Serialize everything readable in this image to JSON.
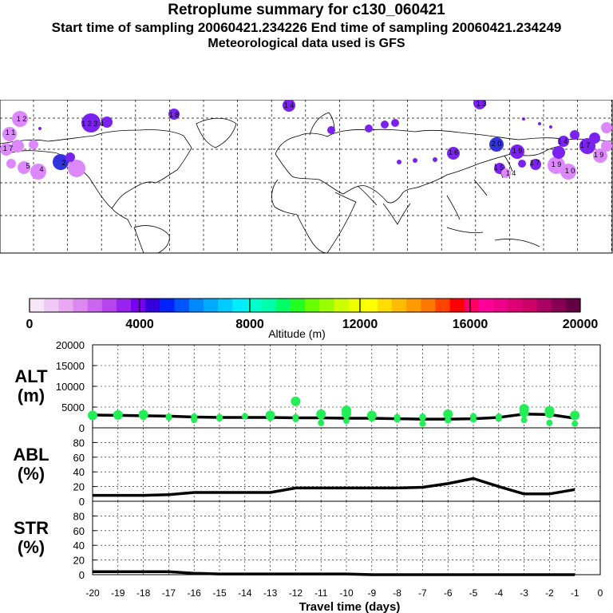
{
  "header": {
    "title": "Retroplume summary for c130_060421",
    "times": "Start time of sampling 20060421.234226     End time of sampling 20060421.234249",
    "met": "Meteorological data used is GFS"
  },
  "colors": {
    "alt_points": "#22ee55",
    "line": "#000000",
    "map_plume_light": "#dd88ff",
    "map_plume_dark": "#7a22ee",
    "map_plume_blue": "#3333dd"
  },
  "colorbar": {
    "label": "Altitude (m)",
    "tick_values": [
      0,
      4000,
      8000,
      12000,
      16000,
      20000
    ],
    "tick_labels": [
      "0",
      "4000",
      "8000",
      "12000",
      "16000",
      "20000"
    ],
    "colors": [
      "#f7e6f7",
      "#f0c8f5",
      "#e8a8f2",
      "#dc88f0",
      "#cc66ee",
      "#b844ee",
      "#9922ee",
      "#7700ee",
      "#3300dd",
      "#0022ff",
      "#0055ff",
      "#0088ff",
      "#00aaff",
      "#00ccff",
      "#00eeff",
      "#00ffcc",
      "#00ffaa",
      "#00ff66",
      "#22ff22",
      "#66ff00",
      "#99ff00",
      "#ccff00",
      "#eeff00",
      "#ffff00",
      "#ffdd00",
      "#ffbb00",
      "#ff9900",
      "#ff7700",
      "#ff4400",
      "#ff0000",
      "#ff0066",
      "#ff0099",
      "#ee0088",
      "#dd0077",
      "#cc0066",
      "#aa0066",
      "#880055",
      "#660044"
    ]
  },
  "map_labels": [
    "1 2",
    "1 3",
    "1 4",
    "1 1",
    "1 5",
    "1 6",
    "1 7",
    "1 8",
    "1 9",
    "2 0",
    "5",
    "4",
    "2",
    "1 0",
    "1 2 3 4"
  ],
  "chart_data": [
    {
      "type": "scatter",
      "panel": "ALT",
      "ylabel": "ALT\n(m)",
      "ylabel_lines": [
        "ALT",
        "(m)"
      ],
      "ylim": [
        0,
        20000
      ],
      "yticks": [
        0,
        5000,
        10000,
        15000,
        20000
      ],
      "ytick_labels": [
        "0",
        "5000",
        "10000",
        "15000",
        "20000"
      ],
      "xlim": [
        -20,
        0
      ],
      "series": [
        {
          "name": "median altitude",
          "type": "line",
          "x": [
            -20,
            -19,
            -18,
            -17,
            -16,
            -15,
            -14,
            -13,
            -12,
            -11,
            -10,
            -9,
            -8,
            -7,
            -6,
            -5,
            -4,
            -3,
            -2,
            -1
          ],
          "values": [
            3100,
            3000,
            2900,
            2800,
            2600,
            2500,
            2500,
            2500,
            2400,
            2400,
            2300,
            2300,
            2200,
            2100,
            2100,
            2200,
            2500,
            3300,
            3200,
            2300
          ]
        },
        {
          "name": "plume altitudes",
          "type": "scatter",
          "points": [
            [
              -20,
              3000
            ],
            [
              -20,
              2600
            ],
            [
              -19,
              3100
            ],
            [
              -19,
              2700
            ],
            [
              -18,
              3200
            ],
            [
              -18,
              2600
            ],
            [
              -17,
              2700
            ],
            [
              -17,
              2500
            ],
            [
              -16,
              2700
            ],
            [
              -16,
              1900
            ],
            [
              -15,
              2600
            ],
            [
              -15,
              2300
            ],
            [
              -14,
              2800
            ],
            [
              -13,
              3000
            ],
            [
              -13,
              2400
            ],
            [
              -12,
              6400
            ],
            [
              -12,
              2600
            ],
            [
              -12,
              2100
            ],
            [
              -11,
              3300
            ],
            [
              -11,
              2700
            ],
            [
              -11,
              1200
            ],
            [
              -10,
              4200
            ],
            [
              -10,
              3400
            ],
            [
              -10,
              1700
            ],
            [
              -9,
              3000
            ],
            [
              -9,
              2200
            ],
            [
              -8,
              2600
            ],
            [
              -8,
              2000
            ],
            [
              -7,
              2700
            ],
            [
              -7,
              2400
            ],
            [
              -7,
              1000
            ],
            [
              -6,
              3300
            ],
            [
              -6,
              2700
            ],
            [
              -6,
              1800
            ],
            [
              -5,
              2800
            ],
            [
              -5,
              2000
            ],
            [
              -4,
              2700
            ],
            [
              -4,
              2200
            ],
            [
              -3,
              4600
            ],
            [
              -3,
              3700
            ],
            [
              -3,
              1900
            ],
            [
              -2,
              4100
            ],
            [
              -2,
              3500
            ],
            [
              -2,
              1200
            ],
            [
              -1,
              3000
            ],
            [
              -1,
              2600
            ],
            [
              -1,
              1000
            ]
          ]
        }
      ]
    },
    {
      "type": "line",
      "panel": "ABL",
      "ylabel": "ABL\n(%)",
      "ylabel_lines": [
        "ABL",
        "(%)"
      ],
      "ylim": [
        0,
        100
      ],
      "yticks": [
        0,
        20,
        40,
        60,
        80
      ],
      "ytick_labels": [
        "0",
        "20",
        "40",
        "60",
        "80"
      ],
      "xlim": [
        -20,
        0
      ],
      "series": [
        {
          "name": "ABL fraction",
          "x": [
            -20,
            -19,
            -18,
            -17,
            -16,
            -15,
            -14,
            -13,
            -12,
            -11,
            -10,
            -9,
            -8,
            -7,
            -6,
            -5,
            -4,
            -3,
            -2,
            -1
          ],
          "values": [
            8,
            8,
            8,
            9,
            12,
            12,
            12,
            12,
            18,
            18,
            18,
            18,
            18,
            19,
            24,
            31,
            20,
            10,
            10,
            16
          ]
        }
      ]
    },
    {
      "type": "line",
      "panel": "STR",
      "ylabel": "STR\n(%)",
      "ylabel_lines": [
        "STR",
        "(%)"
      ],
      "ylim": [
        0,
        100
      ],
      "yticks": [
        0,
        20,
        40,
        60,
        80
      ],
      "ytick_labels": [
        "0",
        "20",
        "40",
        "60",
        "80"
      ],
      "xlim": [
        -20,
        0
      ],
      "xticks": [
        -20,
        -19,
        -18,
        -17,
        -16,
        -15,
        -14,
        -13,
        -12,
        -11,
        -10,
        -9,
        -8,
        -7,
        -6,
        -5,
        -4,
        -3,
        -2,
        -1,
        0
      ],
      "xtick_labels": [
        "-20",
        "-19",
        "-18",
        "-17",
        "-16",
        "-15",
        "-14",
        "-13",
        "-12",
        "-11",
        "-10",
        "-9",
        "-8",
        "-7",
        "-6",
        "-5",
        "-4",
        "-3",
        "-2",
        "-1",
        "0"
      ],
      "xlabel": "Travel time (days)",
      "series": [
        {
          "name": "stratospheric fraction",
          "x": [
            -20,
            -19,
            -18,
            -17,
            -16,
            -15,
            -14,
            -13,
            -12,
            -11,
            -10,
            -9,
            -8,
            -7,
            -6,
            -5,
            -4,
            -3,
            -2,
            -1
          ],
          "values": [
            4,
            4,
            4,
            4,
            2,
            1,
            1,
            1,
            1,
            1,
            1,
            0,
            0,
            0,
            0,
            0,
            0,
            0,
            0,
            0
          ]
        }
      ]
    }
  ]
}
